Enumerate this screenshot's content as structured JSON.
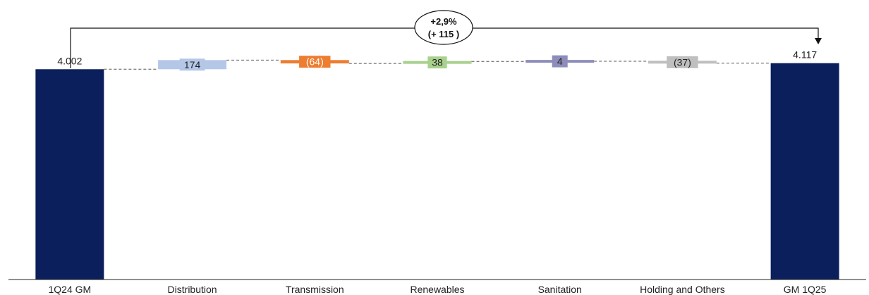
{
  "chart_data": {
    "type": "bar",
    "subtype": "waterfall",
    "title": "",
    "xlabel": "",
    "ylabel": "",
    "categories": [
      "1Q24 GM",
      "Distribution",
      "Transmission",
      "Renewables",
      "Sanitation",
      "Holding and Others",
      "GM 1Q25"
    ],
    "values": [
      4002,
      174,
      -64,
      38,
      4,
      -37,
      4117
    ],
    "kinds": [
      "total",
      "delta",
      "delta",
      "delta",
      "delta",
      "delta",
      "total"
    ],
    "value_labels": [
      "4.002",
      "174",
      "(64)",
      "38",
      "4",
      "(37)",
      "4.117"
    ],
    "colors": [
      "#0b1f5c",
      "#b4c7e7",
      "#ed7d31",
      "#a9d18e",
      "#8e8cbb",
      "#bfbfbf",
      "#0b1f5c"
    ],
    "ylim": [
      0,
      4140
    ],
    "grid": false,
    "legend": "none",
    "annotation": {
      "line1": "+2,9%",
      "line2": "(+ 115 )"
    }
  }
}
